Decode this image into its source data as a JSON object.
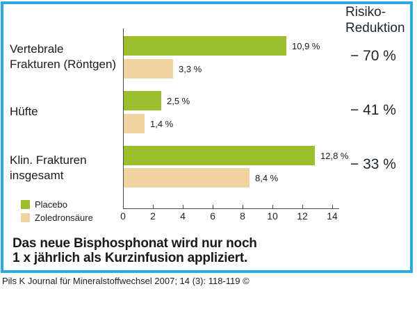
{
  "chart_data": {
    "type": "bar",
    "orientation": "horizontal",
    "categories": [
      "Vertebrale Frakturen (Röntgen)",
      "Hüfte",
      "Klin. Frakturen insgesamt"
    ],
    "categories_lines": [
      [
        "Vertebrale",
        "Frakturen (Röntgen)"
      ],
      [
        "Hüfte"
      ],
      [
        "Klin. Frakturen",
        "insgesamt"
      ]
    ],
    "series": [
      {
        "name": "Placebo",
        "color": "#9CBE2D",
        "values": [
          10.9,
          2.5,
          12.8
        ],
        "value_labels": [
          "10,9 %",
          "2,5 %",
          "12,8 %"
        ]
      },
      {
        "name": "Zoledronsäure",
        "color": "#EFD3A0",
        "values": [
          3.3,
          1.4,
          8.4
        ],
        "value_labels": [
          "3,3 %",
          "1,4 %",
          "8,4 %"
        ]
      }
    ],
    "risk_header": [
      "Risiko-",
      "Reduktion"
    ],
    "risk_reduction": [
      "− 70 %",
      "− 41 %",
      "− 33 %"
    ],
    "xlim": [
      0,
      14
    ],
    "xticks": [
      0,
      2,
      4,
      6,
      8,
      10,
      12,
      14
    ],
    "grid": false,
    "legend_position": "bottom-left"
  },
  "headline": {
    "line1": "Das neue Bisphosphonat wird nur noch",
    "line2": "1 x jährlich als Kurzinfusion appliziert."
  },
  "citation": "Pils K Journal für Mineralstoffwechsel 2007; 14 (3): 118-119 ©",
  "colors": {
    "frame_border": "#2BAAE1",
    "placebo": "#9CBE2D",
    "zoledronsaeure": "#EFD3A0",
    "axis": "#4a4a4a",
    "text": "#1b1b1b"
  }
}
